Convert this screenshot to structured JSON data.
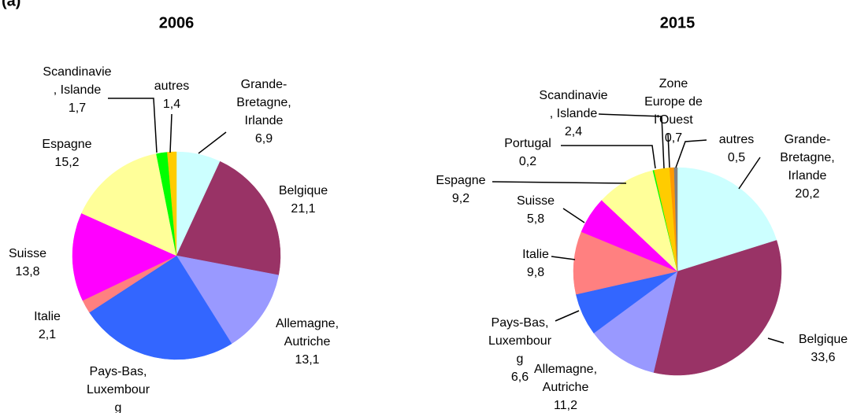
{
  "panel_label": "(a)",
  "chart_data": [
    {
      "type": "pie",
      "title": "2006",
      "categories": [
        "Grande-\nBretagne,\nIrlande",
        "Belgique",
        "Allemagne,\nAutriche",
        "Pays-Bas,\nLuxembour\ng",
        "Italie",
        "Suisse",
        "Espagne",
        "Scandinavie\n, Islande",
        "autres"
      ],
      "values": [
        6.9,
        21.1,
        13.1,
        24.7,
        2.1,
        13.8,
        15.2,
        1.7,
        1.4
      ],
      "value_labels": [
        "6,9",
        "21,1",
        "13,1",
        null,
        "2,1",
        "13,8",
        "15,2",
        "1,7",
        "1,4"
      ],
      "colors": [
        "#ccffff",
        "#993366",
        "#9999ff",
        "#3366ff",
        "#ff8080",
        "#ff00ff",
        "#ffff99",
        "#00ff00",
        "#ffcc00"
      ]
    },
    {
      "type": "pie",
      "title": "2015",
      "categories": [
        "Grande-\nBretagne,\nIrlande",
        "Belgique",
        "Allemagne,\nAutriche",
        "Pays-Bas,\nLuxembour\ng",
        "Italie",
        "Suisse",
        "Espagne",
        "Portugal",
        "Scandinavie\n, Islande",
        "Zone\nEurope de\nl'Ouest",
        "autres"
      ],
      "values": [
        20.2,
        33.6,
        11.2,
        6.6,
        9.8,
        5.8,
        9.2,
        0.2,
        2.4,
        0.7,
        0.5
      ],
      "value_labels": [
        "20,2",
        "33,6",
        "11,2",
        "6,6",
        "9,8",
        "5,8",
        "9,2",
        "0,2",
        "2,4",
        "0,7",
        "0,5"
      ],
      "colors": [
        "#ccffff",
        "#993366",
        "#9999ff",
        "#3366ff",
        "#ff8080",
        "#ff00ff",
        "#ffff99",
        "#00ff00",
        "#ffcc00",
        "#ff9900",
        "#808080"
      ]
    }
  ]
}
